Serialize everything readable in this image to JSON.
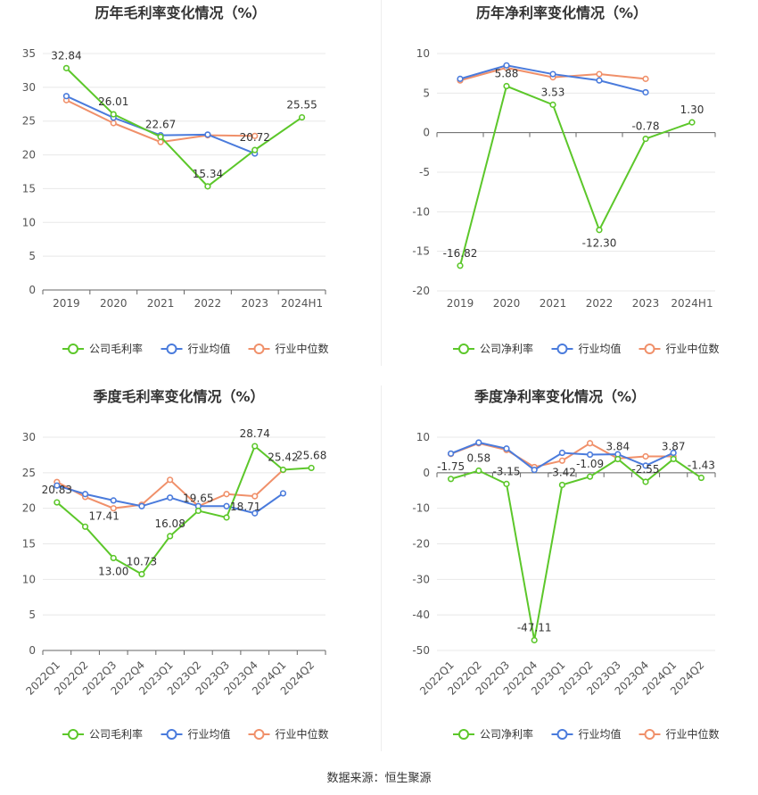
{
  "source": "数据来源：恒生聚源",
  "colors": {
    "company": "#5cc72a",
    "industry_avg": "#4a7bdc",
    "industry_median": "#f0906a"
  },
  "chart_data": [
    {
      "id": "annual-gross",
      "type": "line",
      "title": "历年毛利率变化情况（%）",
      "categories": [
        "2019",
        "2020",
        "2021",
        "2022",
        "2023",
        "2024H1"
      ],
      "ylim": [
        0,
        35
      ],
      "yticks": [
        0,
        5,
        10,
        15,
        20,
        25,
        30,
        35
      ],
      "legend": [
        "公司毛利率",
        "行业均值",
        "行业中位数"
      ],
      "series": [
        {
          "name": "公司毛利率",
          "values": [
            32.84,
            26.01,
            22.67,
            15.34,
            20.72,
            25.55
          ],
          "labels": [
            "32.84",
            "26.01",
            "22.67",
            "15.34",
            "20.72",
            "25.55"
          ]
        },
        {
          "name": "行业均值",
          "values": [
            28.7,
            25.5,
            22.9,
            23.0,
            20.2,
            null
          ]
        },
        {
          "name": "行业中位数",
          "values": [
            28.1,
            24.7,
            21.9,
            22.9,
            22.8,
            null
          ]
        }
      ]
    },
    {
      "id": "annual-net",
      "type": "line",
      "title": "历年净利率变化情况（%）",
      "categories": [
        "2019",
        "2020",
        "2021",
        "2022",
        "2023",
        "2024H1"
      ],
      "ylim": [
        -20,
        10
      ],
      "yticks": [
        -20,
        -15,
        -10,
        -5,
        0,
        5,
        10
      ],
      "legend": [
        "公司净利率",
        "行业均值",
        "行业中位数"
      ],
      "series": [
        {
          "name": "公司净利率",
          "values": [
            -16.82,
            5.88,
            3.53,
            -12.3,
            -0.78,
            1.3
          ],
          "labels": [
            "-16.82",
            "5.88",
            "3.53",
            "-12.30",
            "-0.78",
            "1.30"
          ]
        },
        {
          "name": "行业均值",
          "values": [
            6.8,
            8.5,
            7.4,
            6.6,
            5.1,
            null
          ]
        },
        {
          "name": "行业中位数",
          "values": [
            6.6,
            8.2,
            7.0,
            7.4,
            6.8,
            null
          ]
        }
      ]
    },
    {
      "id": "quarterly-gross",
      "type": "line",
      "title": "季度毛利率变化情况（%）",
      "categories": [
        "2022Q1",
        "2022Q2",
        "2022Q3",
        "2022Q4",
        "2023Q1",
        "2023Q2",
        "2023Q3",
        "2023Q4",
        "2024Q1",
        "2024Q2"
      ],
      "ylim": [
        0,
        30
      ],
      "yticks": [
        0,
        5,
        10,
        15,
        20,
        25,
        30
      ],
      "legend": [
        "公司毛利率",
        "行业均值",
        "行业中位数"
      ],
      "series": [
        {
          "name": "公司毛利率",
          "values": [
            20.83,
            17.41,
            13.0,
            10.73,
            16.08,
            19.65,
            18.71,
            28.74,
            25.42,
            25.68
          ],
          "labels": [
            "20.83",
            "17.41",
            "13.00",
            "10.73",
            "16.08",
            "19.65",
            "18.71",
            "28.74",
            "25.42",
            "25.68"
          ]
        },
        {
          "name": "行业均值",
          "values": [
            23.2,
            22.0,
            21.1,
            20.3,
            21.5,
            20.3,
            20.3,
            19.3,
            22.1,
            null
          ]
        },
        {
          "name": "行业中位数",
          "values": [
            23.7,
            21.6,
            20.0,
            20.5,
            24.0,
            20.3,
            22.0,
            21.7,
            25.4,
            null
          ]
        }
      ]
    },
    {
      "id": "quarterly-net",
      "type": "line",
      "title": "季度净利率变化情况（%）",
      "categories": [
        "2022Q1",
        "2022Q2",
        "2022Q3",
        "2022Q4",
        "2023Q1",
        "2023Q2",
        "2023Q3",
        "2023Q4",
        "2024Q1",
        "2024Q2"
      ],
      "ylim": [
        -50,
        10
      ],
      "yticks": [
        -50,
        -40,
        -30,
        -20,
        -10,
        0,
        10
      ],
      "legend": [
        "公司净利率",
        "行业均值",
        "行业中位数"
      ],
      "series": [
        {
          "name": "公司净利率",
          "values": [
            -1.75,
            0.58,
            -3.15,
            -47.11,
            -3.42,
            -1.09,
            3.84,
            -2.55,
            3.87,
            -1.43
          ],
          "labels": [
            "-1.75",
            "0.58",
            "-3.15",
            "-47.11",
            "-3.42",
            "-1.09",
            "3.84",
            "-2.55",
            "3.87",
            "-1.43"
          ]
        },
        {
          "name": "行业均值",
          "values": [
            5.4,
            8.5,
            6.8,
            0.8,
            5.6,
            5.1,
            5.2,
            2.0,
            5.6,
            null
          ]
        },
        {
          "name": "行业中位数",
          "values": [
            5.3,
            8.3,
            6.4,
            1.6,
            3.4,
            8.3,
            4.0,
            4.6,
            4.6,
            null
          ]
        }
      ]
    }
  ]
}
